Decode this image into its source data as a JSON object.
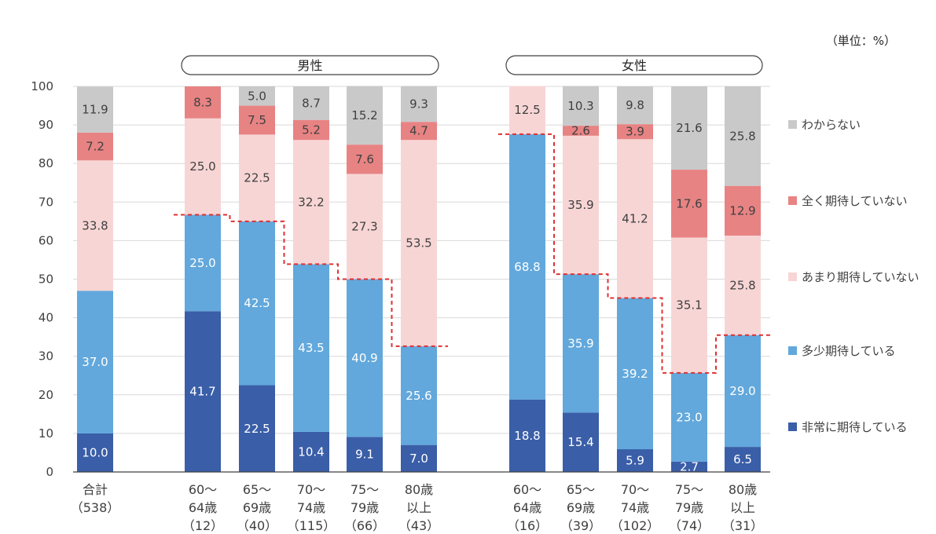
{
  "chart_data": {
    "type": "stacked-bar",
    "unit_label": "（単位：%）",
    "ylim": [
      0,
      100
    ],
    "y_ticks": [
      0,
      10,
      20,
      30,
      40,
      50,
      60,
      70,
      80,
      90,
      100
    ],
    "groups": [
      {
        "label": "男性",
        "from": 1,
        "to": 5
      },
      {
        "label": "女性",
        "from": 6,
        "to": 10
      }
    ],
    "categories": [
      {
        "label": [
          "合計",
          "（538）"
        ]
      },
      {
        "label": [
          "60～",
          "64歳",
          "（12）"
        ]
      },
      {
        "label": [
          "65～",
          "69歳",
          "（40）"
        ]
      },
      {
        "label": [
          "70～",
          "74歳",
          "（115）"
        ]
      },
      {
        "label": [
          "75～",
          "79歳",
          "（66）"
        ]
      },
      {
        "label": [
          "80歳",
          "以上",
          "（43）"
        ]
      },
      {
        "label": [
          "60～",
          "64歳",
          "（16）"
        ]
      },
      {
        "label": [
          "65～",
          "69歳",
          "（39）"
        ]
      },
      {
        "label": [
          "70～",
          "74歳",
          "（102）"
        ]
      },
      {
        "label": [
          "75～",
          "79歳",
          "（74）"
        ]
      },
      {
        "label": [
          "80歳",
          "以上",
          "（31）"
        ]
      }
    ],
    "series": [
      {
        "name": "非常に期待している",
        "color": "#3a5ea8",
        "label_color": "#ffffff",
        "values": [
          10.0,
          41.7,
          22.5,
          10.4,
          9.1,
          7.0,
          18.8,
          15.4,
          5.9,
          2.7,
          6.5
        ]
      },
      {
        "name": "多少期待している",
        "color": "#62a8dc",
        "label_color": "#ffffff",
        "values": [
          37.0,
          25.0,
          42.5,
          43.5,
          40.9,
          25.6,
          68.8,
          35.9,
          39.2,
          23.0,
          29.0
        ]
      },
      {
        "name": "あまり期待していない",
        "color": "#f8d5d5",
        "label_color": "#404040",
        "values": [
          33.8,
          25.0,
          22.5,
          32.2,
          27.3,
          53.5,
          12.5,
          35.9,
          41.2,
          35.1,
          25.8
        ]
      },
      {
        "name": "全く期待していない",
        "color": "#e88383",
        "label_color": "#404040",
        "values": [
          7.2,
          8.3,
          7.5,
          5.2,
          7.6,
          4.7,
          null,
          2.6,
          3.9,
          17.6,
          12.9
        ]
      },
      {
        "name": "わからない",
        "color": "#c9c9c9",
        "label_color": "#404040",
        "values": [
          11.9,
          null,
          5.0,
          8.7,
          15.2,
          9.3,
          null,
          10.3,
          9.8,
          21.6,
          25.8
        ]
      }
    ],
    "legend_order": [
      "わからない",
      "全く期待していない",
      "あまり期待していない",
      "多少期待している",
      "非常に期待している"
    ],
    "legend_position": "right",
    "dashed_line": {
      "color": "#e03030",
      "note": "cumulative share of 期待している (series 0 + 1), drawn within each group"
    }
  }
}
